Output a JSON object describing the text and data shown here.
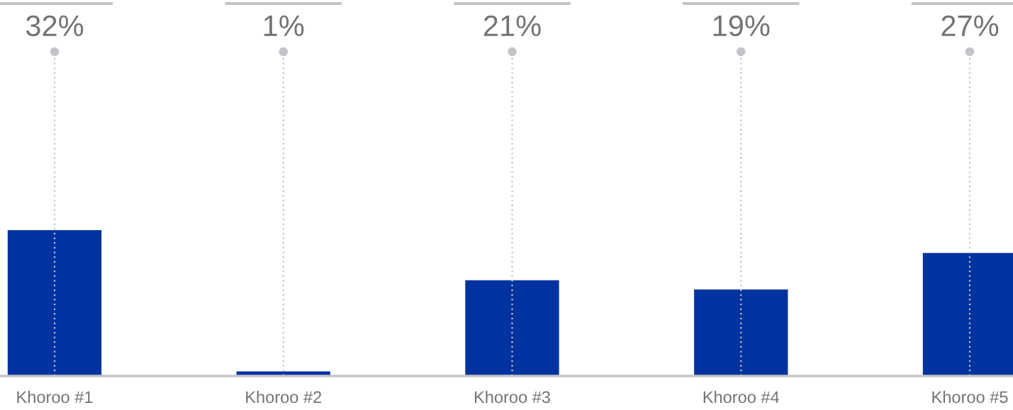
{
  "chart_data": {
    "type": "bar",
    "categories": [
      "Khoroo #1",
      "Khoroo #2",
      "Khoroo #3",
      "Khoroo #4",
      "Khoroo #5"
    ],
    "values": [
      32,
      1,
      21,
      19,
      27
    ],
    "color": "#0033a0",
    "value_labels": [
      "32%",
      "1%",
      "21%",
      "19%",
      "27%"
    ],
    "grid": "x",
    "tick_labels": "x"
  }
}
